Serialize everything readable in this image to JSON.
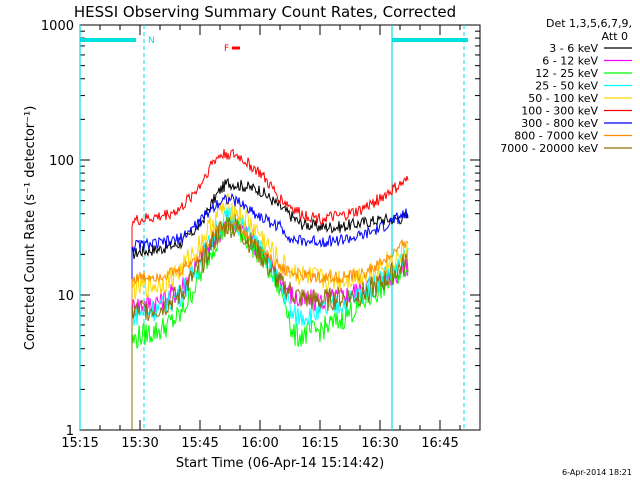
{
  "chart_data": {
    "type": "line",
    "title": "HESSI Observing Summary Count Rates, Corrected",
    "xlabel": "Start Time (06-Apr-14 15:14:42)",
    "ylabel": "Corrected Count Rate (s⁻¹ detector⁻¹)",
    "yscale": "log",
    "ylim": [
      1,
      1000
    ],
    "xlim": [
      "15:15",
      "16:55"
    ],
    "x_ticks": [
      "15:15",
      "15:30",
      "15:45",
      "16:00",
      "16:15",
      "16:30",
      "16:45"
    ],
    "y_ticks": [
      "1",
      "10",
      "100",
      "1000"
    ],
    "legend_title": "Det 1,3,5,6,7,9,",
    "legend_subtitle": "Att 0",
    "legend_position": "right",
    "footer": "6-Apr-2014 18:21",
    "flags": {
      "N_label": "N",
      "F_label": "F",
      "flag_color": "#00e0e0",
      "f_color": "#ff0000"
    },
    "vertical_lines": {
      "solid": [
        "15:15",
        "16:33"
      ],
      "dashed": [
        "15:31",
        "16:51"
      ]
    },
    "series": [
      {
        "name": "3 - 6 keV",
        "color": "#000000",
        "x": [
          "15:28",
          "15:30",
          "15:35",
          "15:40",
          "15:45",
          "15:48",
          "15:50",
          "15:52",
          "15:55",
          "16:00",
          "16:05",
          "16:10",
          "16:15",
          "16:20",
          "16:25",
          "16:30",
          "16:35",
          "16:37"
        ],
        "y": [
          20,
          21,
          22,
          24,
          33,
          48,
          60,
          68,
          65,
          60,
          45,
          34,
          32,
          32,
          34,
          36,
          37,
          38
        ]
      },
      {
        "name": "6 - 12 keV",
        "color": "#ff00ff",
        "x": [
          "15:28",
          "15:30",
          "15:35",
          "15:40",
          "15:45",
          "15:48",
          "15:50",
          "15:52",
          "15:55",
          "16:00",
          "16:05",
          "16:08",
          "16:10",
          "16:15",
          "16:20",
          "16:25",
          "16:30",
          "16:35",
          "16:37"
        ],
        "y": [
          8,
          8.5,
          9,
          11,
          18,
          24,
          30,
          35,
          32,
          22,
          13,
          10,
          9,
          9,
          9.5,
          11,
          13,
          15,
          17
        ]
      },
      {
        "name": "12 - 25 keV",
        "color": "#00ff00",
        "x": [
          "15:28",
          "15:30",
          "15:35",
          "15:40",
          "15:45",
          "15:48",
          "15:50",
          "15:52",
          "15:55",
          "16:00",
          "16:05",
          "16:07",
          "16:08",
          "16:10",
          "16:15",
          "16:20",
          "16:25",
          "16:30",
          "16:35",
          "16:37"
        ],
        "y": [
          4.5,
          5,
          5.5,
          7,
          14,
          22,
          28,
          33,
          30,
          20,
          11,
          8,
          5,
          5,
          5.5,
          6.5,
          8.5,
          11,
          15,
          17
        ]
      },
      {
        "name": "25 - 50 keV",
        "color": "#00ffff",
        "x": [
          "15:28",
          "15:30",
          "15:35",
          "15:40",
          "15:45",
          "15:48",
          "15:50",
          "15:52",
          "15:55",
          "16:00",
          "16:05",
          "16:07",
          "16:08",
          "16:10",
          "16:15",
          "16:20",
          "16:25",
          "16:30",
          "16:35",
          "16:37"
        ],
        "y": [
          7,
          7.5,
          8,
          10,
          17,
          26,
          33,
          38,
          34,
          22,
          12,
          9,
          7,
          7,
          7.5,
          8.5,
          10,
          13,
          17,
          19
        ]
      },
      {
        "name": "50 - 100 keV",
        "color": "#ffd700",
        "x": [
          "15:28",
          "15:30",
          "15:35",
          "15:40",
          "15:45",
          "15:48",
          "15:50",
          "15:52",
          "15:55",
          "16:00",
          "16:05",
          "16:10",
          "16:15",
          "16:20",
          "16:25",
          "16:30",
          "16:35",
          "16:37"
        ],
        "y": [
          11,
          11.5,
          12,
          15,
          24,
          34,
          42,
          46,
          40,
          28,
          17,
          14,
          13,
          13,
          14,
          16,
          20,
          22
        ]
      },
      {
        "name": "100 - 300 keV",
        "color": "#ff0000",
        "x": [
          "15:28",
          "15:30",
          "15:35",
          "15:40",
          "15:45",
          "15:48",
          "15:50",
          "15:52",
          "15:55",
          "16:00",
          "16:05",
          "16:10",
          "16:15",
          "16:20",
          "16:25",
          "16:30",
          "16:35",
          "16:37"
        ],
        "y": [
          35,
          36,
          38,
          43,
          65,
          95,
          108,
          112,
          105,
          80,
          52,
          40,
          37,
          38,
          42,
          52,
          65,
          70
        ]
      },
      {
        "name": "300 - 800 keV",
        "color": "#0000ff",
        "x": [
          "15:28",
          "15:30",
          "15:35",
          "15:40",
          "15:45",
          "15:48",
          "15:50",
          "15:52",
          "15:55",
          "16:00",
          "16:05",
          "16:08",
          "16:10",
          "16:15",
          "16:20",
          "16:25",
          "16:30",
          "16:35",
          "16:37"
        ],
        "y": [
          23,
          23.5,
          24,
          26,
          35,
          44,
          50,
          52,
          48,
          38,
          32,
          26,
          25,
          25,
          25.5,
          27,
          31,
          38,
          40
        ]
      },
      {
        "name": "800 - 7000 keV",
        "color": "#ff8c00",
        "x": [
          "15:28",
          "15:30",
          "15:35",
          "15:40",
          "15:45",
          "15:48",
          "15:50",
          "15:52",
          "15:55",
          "16:00",
          "16:05",
          "16:10",
          "16:15",
          "16:20",
          "16:25",
          "16:30",
          "16:35",
          "16:37"
        ],
        "y": [
          13,
          13.5,
          14,
          15,
          20,
          27,
          32,
          34,
          31,
          22,
          16,
          14,
          13.5,
          13.5,
          14,
          17,
          22,
          26
        ]
      },
      {
        "name": "7000 - 20000 keV",
        "color": "#8b7000",
        "x": [
          "15:28",
          "15:30",
          "15:35",
          "15:40",
          "15:45",
          "15:48",
          "15:50",
          "15:52",
          "15:55",
          "16:00",
          "16:05",
          "16:10",
          "16:15",
          "16:20",
          "16:25",
          "16:30",
          "16:35",
          "16:37"
        ],
        "y": [
          7.5,
          7.8,
          8,
          10,
          16,
          24,
          30,
          33,
          30,
          20,
          12,
          9.5,
          9,
          9.5,
          10,
          12,
          16,
          18
        ]
      }
    ]
  }
}
